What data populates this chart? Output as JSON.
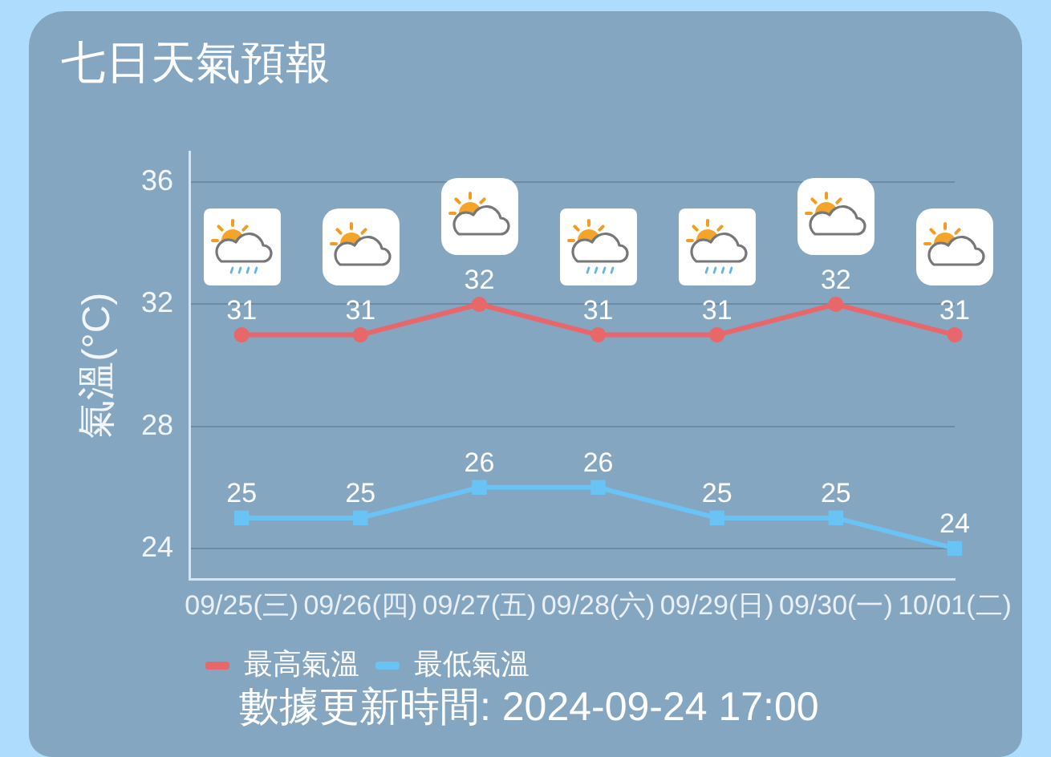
{
  "chart_data": {
    "type": "line",
    "title": "七日天氣預報",
    "ylabel": "氣溫(°C)",
    "categories": [
      "09/25(三)",
      "09/26(四)",
      "09/27(五)",
      "09/28(六)",
      "09/29(日)",
      "09/30(一)",
      "10/01(二)"
    ],
    "series": [
      {
        "name": "最高氣溫",
        "color": "#e8676b",
        "marker": "circle",
        "values": [
          31,
          31,
          32,
          31,
          31,
          32,
          31
        ]
      },
      {
        "name": "最低氣溫",
        "color": "#69c3f5",
        "marker": "square",
        "values": [
          25,
          25,
          26,
          26,
          25,
          25,
          24
        ]
      }
    ],
    "ylim": [
      23,
      37
    ],
    "yticks": [
      24,
      28,
      32,
      36
    ],
    "grid": "y",
    "legend": "bottom left",
    "line_style": "solid",
    "data_labels": true,
    "annotations": [
      "數據更新時間: 2024-09-24 17:00"
    ]
  }
}
